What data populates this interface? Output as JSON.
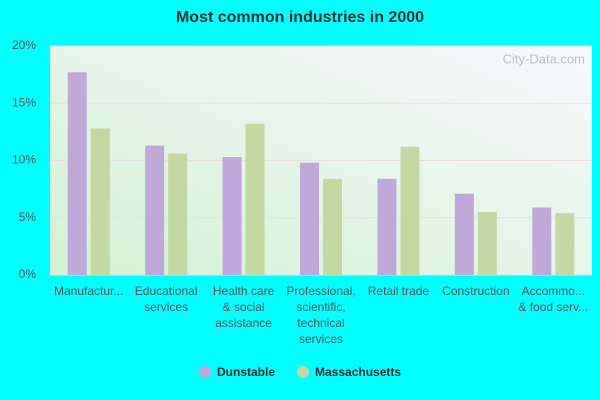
{
  "chart_data": {
    "type": "bar",
    "title": "Most common industries in 2000",
    "watermark": "City-Data.com",
    "categories": [
      [
        "Manufactur..."
      ],
      [
        "Educational",
        "services"
      ],
      [
        "Health care",
        "& social",
        "assistance"
      ],
      [
        "Professional,",
        "scientific,",
        "technical",
        "services"
      ],
      [
        "Retail trade"
      ],
      [
        "Construction"
      ],
      [
        "Accommo...",
        "& food serv..."
      ]
    ],
    "series": [
      {
        "name": "Dunstable",
        "color": "#c0a8d8",
        "values": [
          17.7,
          11.3,
          10.3,
          9.8,
          8.4,
          7.1,
          5.9
        ]
      },
      {
        "name": "Massachusetts",
        "color": "#c4d8a4",
        "values": [
          12.8,
          10.6,
          13.2,
          8.4,
          11.2,
          5.5,
          5.4
        ]
      }
    ],
    "ylim": [
      0,
      20
    ],
    "yticks": [
      {
        "value": 0,
        "label": "0%"
      },
      {
        "value": 5,
        "label": "5%"
      },
      {
        "value": 10,
        "label": "10%"
      },
      {
        "value": 15,
        "label": "15%"
      },
      {
        "value": 20,
        "label": "20%"
      }
    ],
    "grid": true,
    "legend": "bottom"
  }
}
